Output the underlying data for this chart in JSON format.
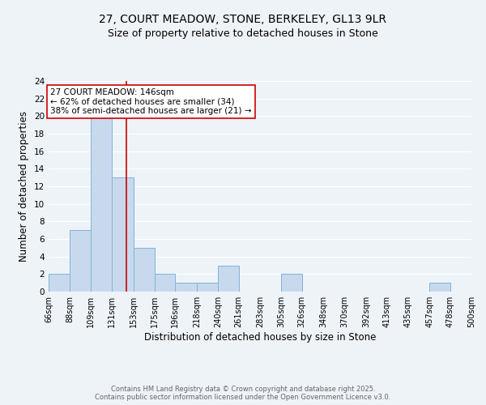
{
  "title_line1": "27, COURT MEADOW, STONE, BERKELEY, GL13 9LR",
  "title_line2": "Size of property relative to detached houses in Stone",
  "xlabel": "Distribution of detached houses by size in Stone",
  "ylabel": "Number of detached properties",
  "bar_edges": [
    66,
    88,
    109,
    131,
    153,
    175,
    196,
    218,
    240,
    261,
    283,
    305,
    326,
    348,
    370,
    392,
    413,
    435,
    457,
    478,
    500
  ],
  "bar_heights": [
    2,
    7,
    20,
    13,
    5,
    2,
    1,
    1,
    3,
    0,
    0,
    2,
    0,
    0,
    0,
    0,
    0,
    0,
    1,
    0
  ],
  "bar_color": "#c8d9ed",
  "bar_edgecolor": "#7fb4d8",
  "vline_x": 146,
  "vline_color": "#cc0000",
  "annotation_text": "27 COURT MEADOW: 146sqm\n← 62% of detached houses are smaller (34)\n38% of semi-detached houses are larger (21) →",
  "annotation_box_color": "#ffffff",
  "annotation_box_edgecolor": "#cc0000",
  "annotation_fontsize": 7.5,
  "ylim": [
    0,
    24
  ],
  "yticks": [
    0,
    2,
    4,
    6,
    8,
    10,
    12,
    14,
    16,
    18,
    20,
    22,
    24
  ],
  "tick_labels": [
    "66sqm",
    "88sqm",
    "109sqm",
    "131sqm",
    "153sqm",
    "175sqm",
    "196sqm",
    "218sqm",
    "240sqm",
    "261sqm",
    "283sqm",
    "305sqm",
    "326sqm",
    "348sqm",
    "370sqm",
    "392sqm",
    "413sqm",
    "435sqm",
    "457sqm",
    "478sqm",
    "500sqm"
  ],
  "footer_text": "Contains HM Land Registry data © Crown copyright and database right 2025.\nContains public sector information licensed under the Open Government Licence v3.0.",
  "bg_color": "#eef3f8",
  "grid_color": "#ffffff",
  "title_fontsize": 10,
  "subtitle_fontsize": 9,
  "axis_label_fontsize": 8.5,
  "tick_fontsize": 7,
  "footer_fontsize": 6,
  "footer_color": "#666666"
}
